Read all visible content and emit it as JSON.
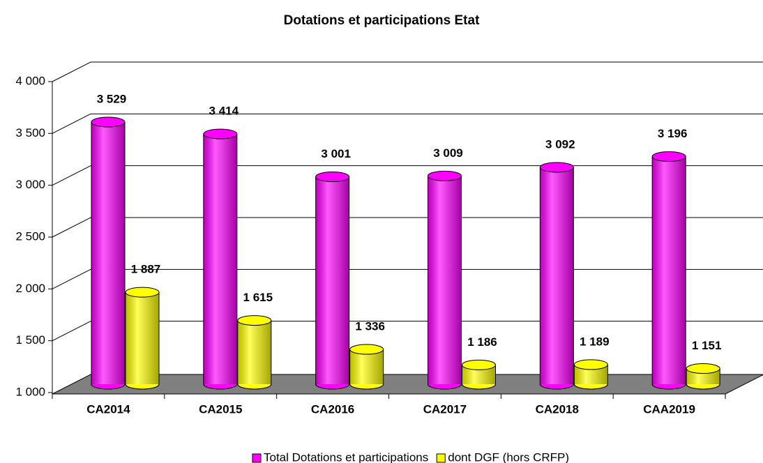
{
  "chart_data": {
    "type": "bar3d",
    "title": "Dotations et participations Etat",
    "categories": [
      "CA2014",
      "CA2015",
      "CA2016",
      "CA2017",
      "CA2018",
      "CAA2019"
    ],
    "series": [
      {
        "name": "Total Dotations et participations",
        "color": "#ff00ff",
        "values": [
          3529,
          3414,
          3001,
          3009,
          3092,
          3196
        ],
        "value_labels": [
          "3 529",
          "3 414",
          "3 001",
          "3 009",
          "3 092",
          "3 196"
        ]
      },
      {
        "name": "dont DGF (hors CRFP)",
        "color": "#ffff00",
        "values": [
          1887,
          1615,
          1336,
          1186,
          1189,
          1151
        ],
        "value_labels": [
          "1 887",
          "1 615",
          "1 336",
          "1 186",
          "1 189",
          "1 151"
        ]
      }
    ],
    "ylim": [
      1000,
      4000
    ],
    "yticks": [
      {
        "value": 1000,
        "label": "1 000"
      },
      {
        "value": 1500,
        "label": "1 500"
      },
      {
        "value": 2000,
        "label": "2 000"
      },
      {
        "value": 2500,
        "label": "2 500"
      },
      {
        "value": 3000,
        "label": "3 000"
      },
      {
        "value": 3500,
        "label": "3 500"
      },
      {
        "value": 4000,
        "label": "4 000"
      }
    ],
    "grid": true,
    "legend": "bottom"
  }
}
